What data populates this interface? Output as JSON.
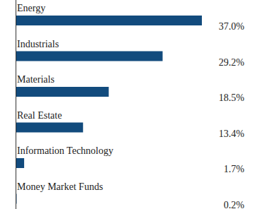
{
  "chart_data": {
    "type": "bar",
    "orientation": "horizontal",
    "categories": [
      "Energy",
      "Industrials",
      "Materials",
      "Real Estate",
      "Information Technology",
      "Money Market Funds"
    ],
    "values": [
      37.0,
      29.2,
      18.5,
      13.4,
      1.7,
      0.2
    ],
    "value_labels": [
      "37.0%",
      "29.2%",
      "18.5%",
      "13.4%",
      "1.7%",
      "0.2%"
    ],
    "color": "#124b7d",
    "xlim": [
      0,
      37
    ],
    "data_labels": true,
    "tick_labels": false,
    "grid": false
  }
}
